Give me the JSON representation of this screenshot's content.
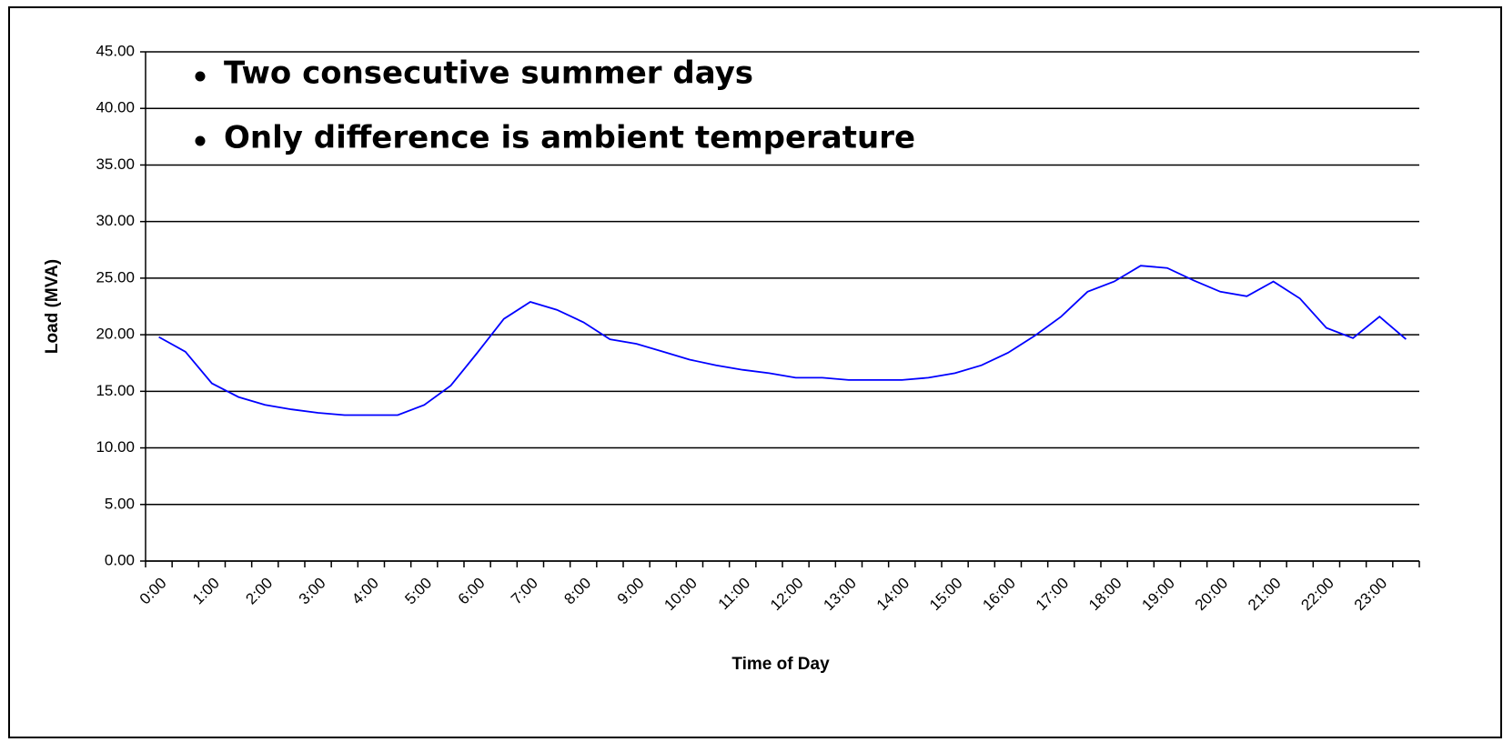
{
  "chart_data": {
    "type": "line",
    "annotations": [
      "Two consecutive summer days",
      "Only difference is ambient temperature"
    ],
    "xlabel": "Time of Day",
    "ylabel": "Load (MVA)",
    "categories": [
      "0:00",
      null,
      "1:00",
      null,
      "2:00",
      null,
      "3:00",
      null,
      "4:00",
      null,
      "5:00",
      null,
      "6:00",
      null,
      "7:00",
      null,
      "8:00",
      null,
      "9:00",
      null,
      "10:00",
      null,
      "11:00",
      null,
      "12:00",
      null,
      "13:00",
      null,
      "14:00",
      null,
      "15:00",
      null,
      "16:00",
      null,
      "17:00",
      null,
      "18:00",
      null,
      "19:00",
      null,
      "20:00",
      null,
      "21:00",
      null,
      "22:00",
      null,
      "23:00",
      null
    ],
    "series": [
      {
        "color": "#0000ff",
        "values": [
          19.8,
          18.5,
          15.7,
          14.5,
          13.8,
          13.4,
          13.1,
          12.9,
          12.9,
          12.9,
          13.8,
          15.5,
          18.4,
          21.4,
          22.9,
          22.2,
          21.1,
          19.6,
          19.2,
          18.5,
          17.8,
          17.3,
          16.9,
          16.6,
          16.2,
          16.2,
          16.0,
          16.0,
          16.0,
          16.2,
          16.6,
          17.3,
          18.4,
          19.9,
          21.6,
          23.8,
          24.7,
          26.1,
          25.9,
          24.8,
          23.8,
          23.4,
          24.7,
          23.2,
          20.6,
          19.7,
          21.6,
          19.6
        ]
      }
    ],
    "ylim": [
      0,
      45
    ],
    "yticks": [
      {
        "value": 0,
        "label": "0.00"
      },
      {
        "value": 5,
        "label": "5.00"
      },
      {
        "value": 10,
        "label": "10.00"
      },
      {
        "value": 15,
        "label": "15.00"
      },
      {
        "value": 20,
        "label": "20.00"
      },
      {
        "value": 25,
        "label": "25.00"
      },
      {
        "value": 30,
        "label": "30.00"
      },
      {
        "value": 35,
        "label": "35.00"
      },
      {
        "value": 40,
        "label": "40.00"
      },
      {
        "value": 45,
        "label": "45.00"
      }
    ],
    "grid": true
  }
}
